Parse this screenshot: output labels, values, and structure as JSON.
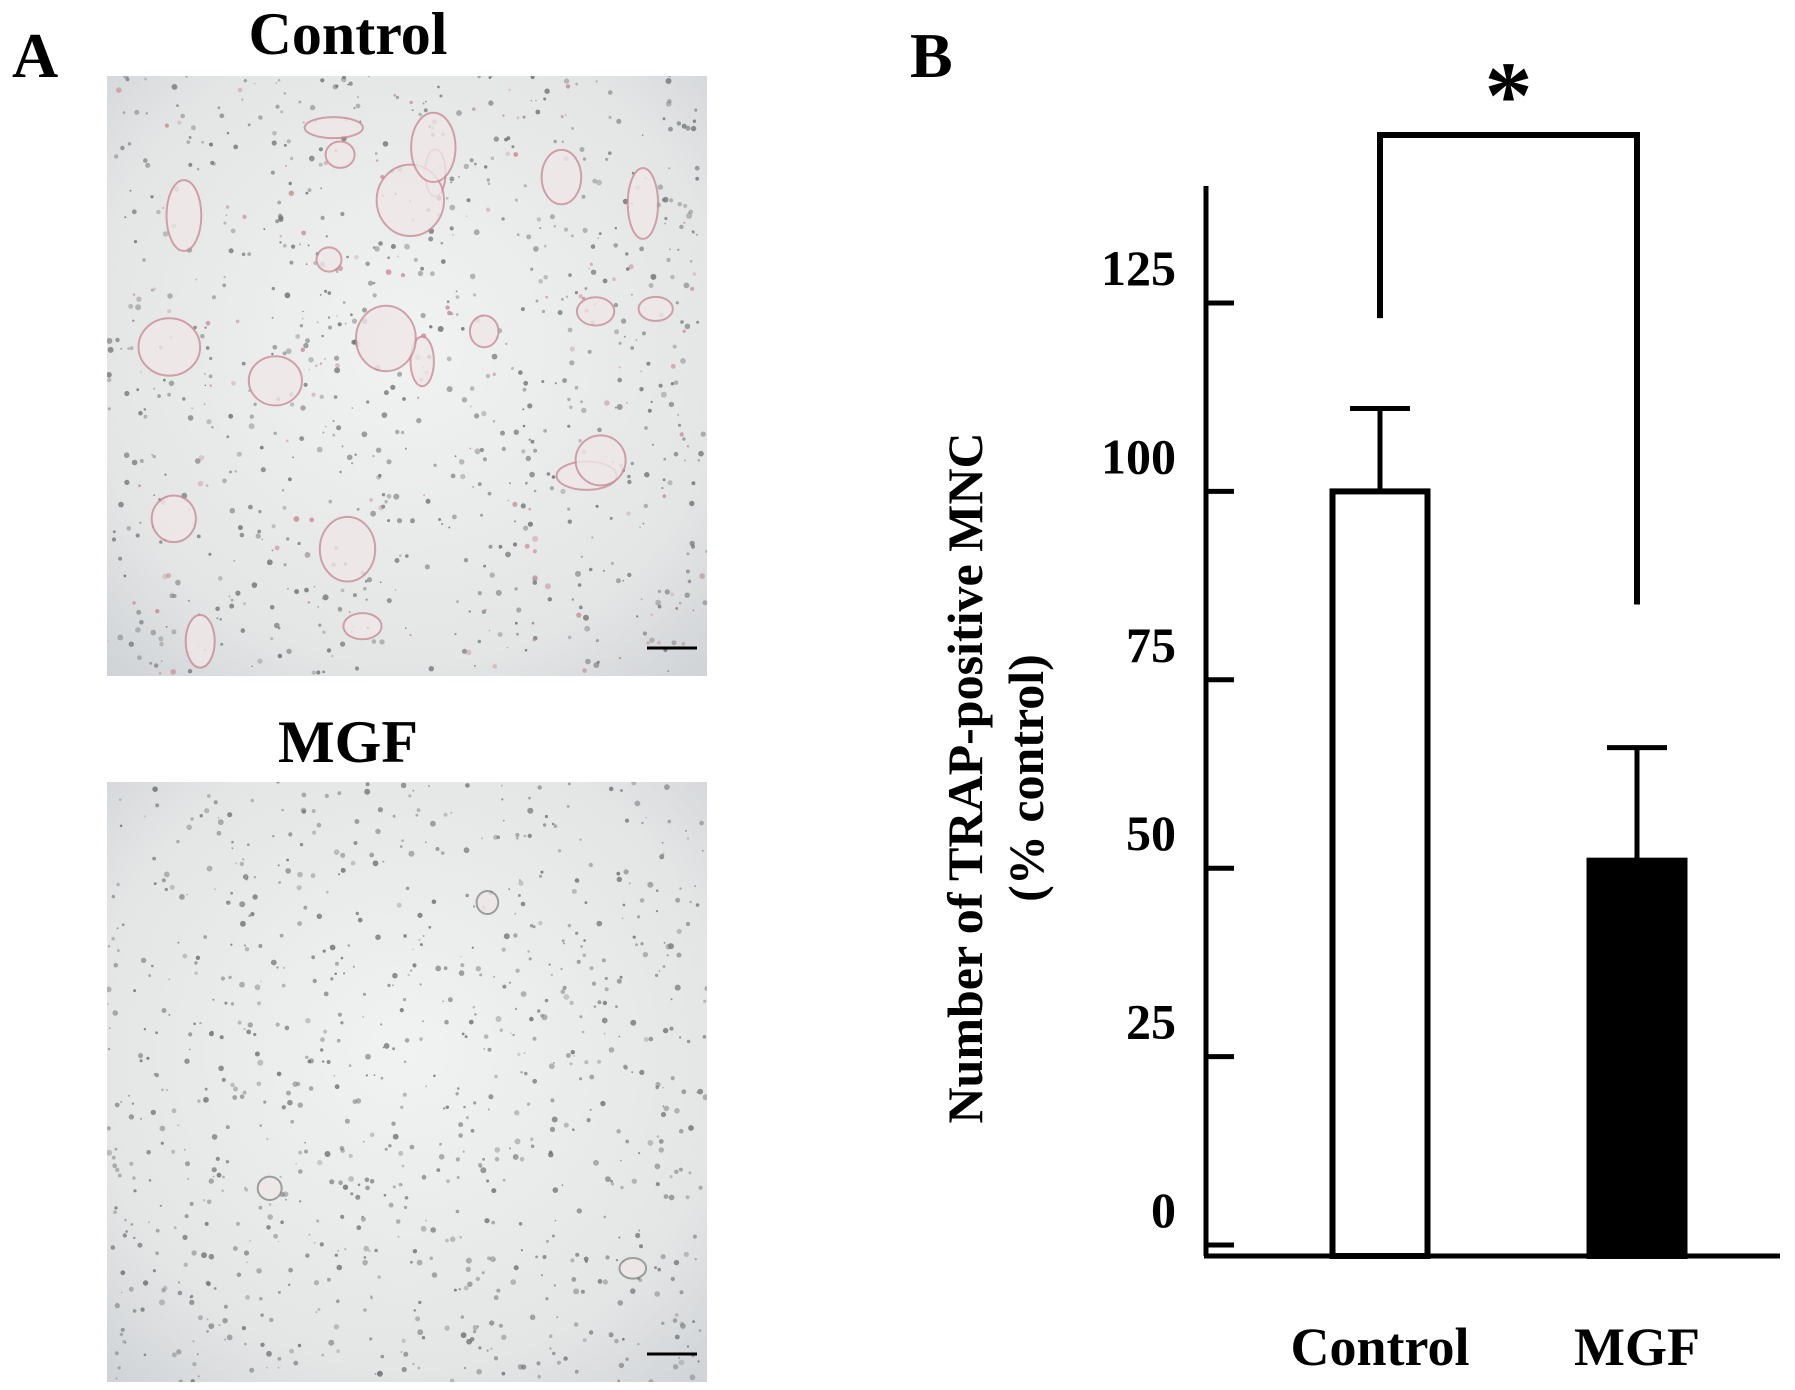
{
  "panels": {
    "a_label": "A",
    "b_label": "B",
    "control_title": "Control",
    "mgf_title": "MGF"
  },
  "colors": {
    "control_bar": "#ffffff",
    "mgf_bar": "#000000",
    "axis": "#000000",
    "micrograph_bg": "#e4e6e6",
    "control_cell_tint": "#c98d97",
    "mgf_cell_tint": "#8a8a8a"
  },
  "chart_data": {
    "type": "bar",
    "title": "",
    "xlabel": "",
    "ylabel": "Number of TRAP-positive MNC",
    "ylabel_line2": "(% control)",
    "categories": [
      "Control",
      "MGF"
    ],
    "series": [
      {
        "values": [
          100,
          51
        ],
        "errors": [
          11,
          15
        ],
        "fills": [
          "#ffffff",
          "#000000"
        ]
      }
    ],
    "yticks": [
      0,
      25,
      50,
      75,
      100,
      125
    ],
    "ytick_labels": [
      "0",
      "25",
      "50",
      "75",
      "100",
      "125"
    ],
    "ylim": [
      0,
      140
    ],
    "grid": false,
    "significance": {
      "between": [
        "Control",
        "MGF"
      ],
      "label": "*"
    }
  }
}
